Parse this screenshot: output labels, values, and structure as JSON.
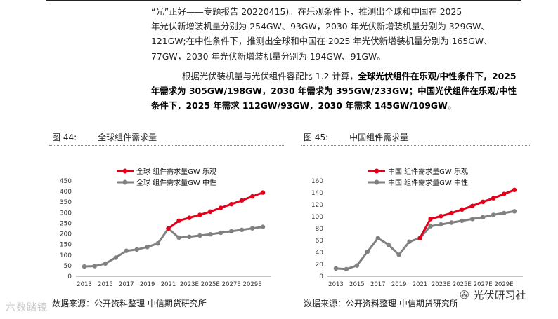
{
  "report": {
    "para1_lines": [
      "“光”正好——专题报告 20220415)。在乐观条件下，推测出全球和中国在 2025",
      "年光伏新增装机量分别为 254GW、93GW，2030 年光伏新增装机量分别为 329GW、",
      "121GW;在中性条件下，推测出全球和中国在 2025 年光伏新增装机量分别为 165GW、",
      "77GW，2030 年光伏新增装机量分别为 194GW、91GW。"
    ],
    "para2_lead": "根据光伏装机量与光伏组件容配比 1.2 计算，",
    "para2_bold": "全球光伏组件在乐观/中性条件下，2025 年需求为 305GW/198GW，2030 年需求为 395GW/233GW；中国光伏组件在乐观/中性条件下，2025 年需求 112GW/93GW，2030 年需求 145GW/109GW。"
  },
  "figures": [
    {
      "number": "图 44:",
      "title": "全球组件需求量",
      "source": "数据来源：公开资料整理  中信期货研究所"
    },
    {
      "number": "图 45:",
      "title": "中国组件需求量",
      "source": "数据来源：公开资料整理  中信期货研究所"
    }
  ],
  "watermark": "六数踏镜",
  "brand": {
    "name": "光伏研习社",
    "icon": "wechat-icon"
  },
  "chart_data": [
    {
      "type": "line",
      "x": [
        "2013",
        "2014",
        "2015",
        "2016",
        "2017",
        "2018",
        "2019",
        "2020",
        "2021",
        "2022E",
        "2023E",
        "2024E",
        "2025E",
        "2026E",
        "2027E",
        "2028E",
        "2029E",
        "2030E"
      ],
      "x_tick_labels": [
        "2013",
        "2015",
        "2017",
        "2019",
        "2021",
        "2023E",
        "2025E",
        "2027E",
        "2029E"
      ],
      "ylim": [
        0,
        450
      ],
      "yticks": [
        0,
        50,
        100,
        150,
        200,
        250,
        300,
        350,
        400,
        450
      ],
      "legend_position": "top",
      "series": [
        {
          "name": "全球 组件需求量GW 乐观",
          "color": "#e3001b",
          "values": [
            null,
            null,
            null,
            null,
            null,
            null,
            null,
            null,
            225,
            262,
            276,
            290,
            305,
            323,
            340,
            358,
            377,
            395
          ]
        },
        {
          "name": "全球 组件需求量GW 中性",
          "color": "#808080",
          "values": [
            46,
            48,
            60,
            88,
            120,
            126,
            138,
            155,
            225,
            182,
            186,
            192,
            198,
            205,
            212,
            219,
            226,
            233
          ]
        }
      ]
    },
    {
      "type": "line",
      "x": [
        "2013",
        "2014",
        "2015",
        "2016",
        "2017",
        "2018",
        "2019",
        "2020",
        "2021",
        "2022E",
        "2023E",
        "2024E",
        "2025E",
        "2026E",
        "2027E",
        "2028E",
        "2029E",
        "2030E"
      ],
      "x_tick_labels": [
        "2013",
        "2015",
        "2017",
        "2019",
        "2021",
        "2023E",
        "2025E",
        "2027E",
        "2029E"
      ],
      "ylim": [
        0,
        160
      ],
      "yticks": [
        0,
        20,
        40,
        60,
        80,
        100,
        120,
        140,
        160
      ],
      "legend_position": "top",
      "series": [
        {
          "name": "中国 组件需求量GW 乐观",
          "color": "#e3001b",
          "values": [
            null,
            null,
            null,
            null,
            null,
            null,
            null,
            null,
            64,
            96,
            101,
            106,
            112,
            118,
            125,
            131,
            138,
            145
          ]
        },
        {
          "name": "中国 组件需求量GW 中性",
          "color": "#808080",
          "values": [
            13,
            12,
            18,
            41,
            64,
            53,
            36,
            58,
            64,
            84,
            87,
            90,
            93,
            96,
            99,
            103,
            106,
            109
          ]
        }
      ]
    }
  ]
}
